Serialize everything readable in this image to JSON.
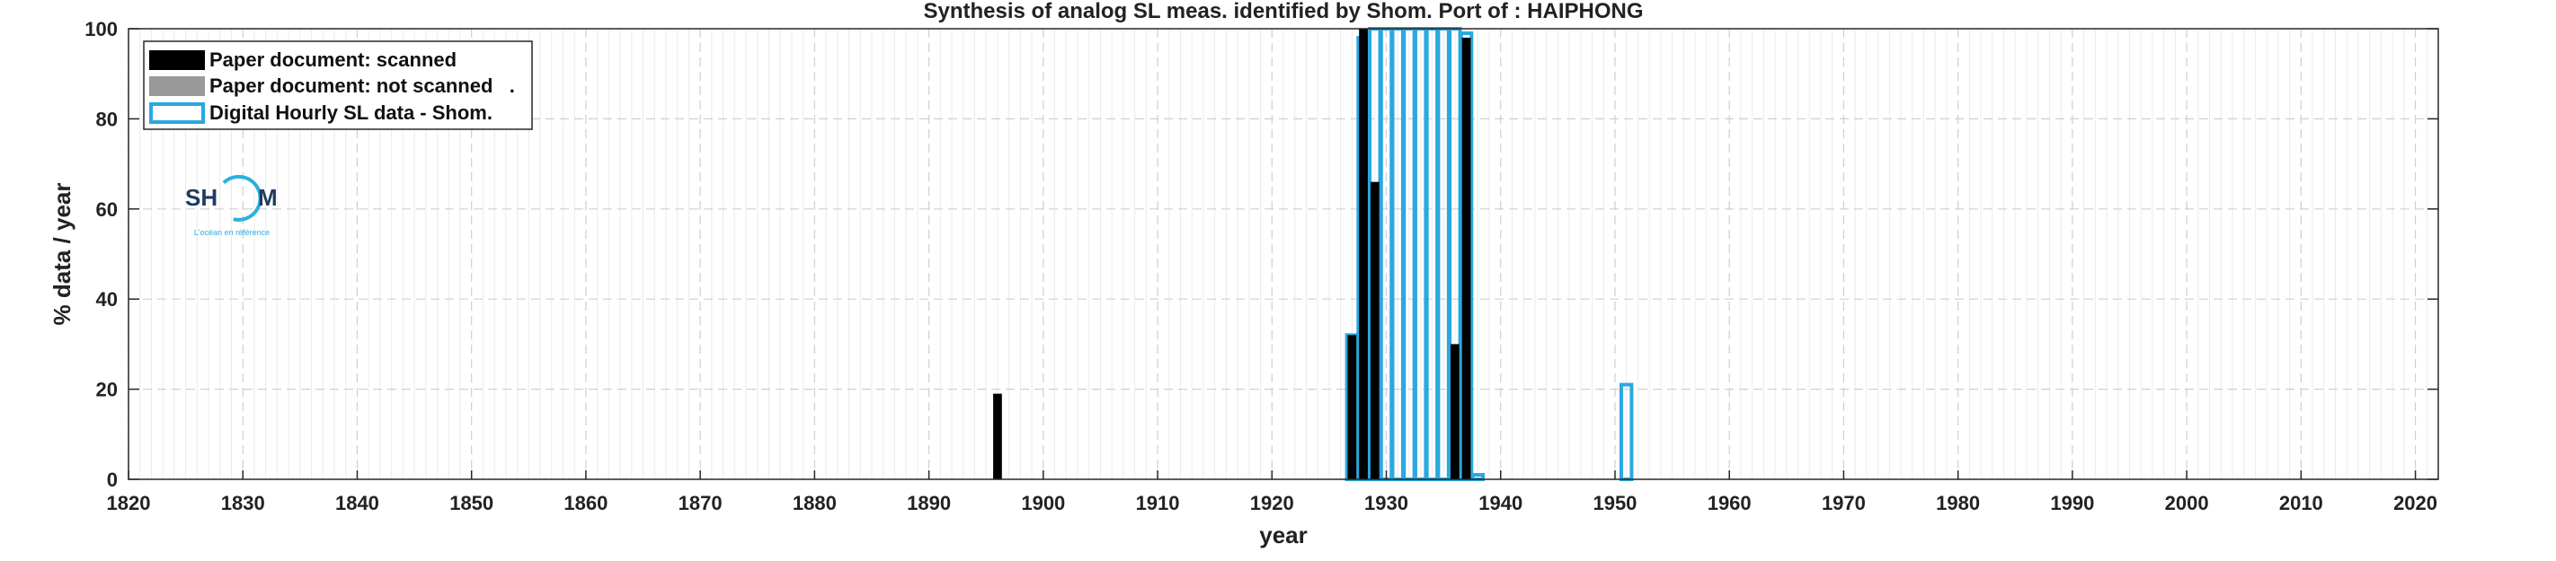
{
  "chart_data": {
    "type": "bar",
    "title": "Synthesis of analog SL meas. identified by Shom. Port of : HAIPHONG",
    "xlabel": "year",
    "ylabel": "% data / year",
    "xlim": [
      1820,
      2022
    ],
    "ylim": [
      0,
      100
    ],
    "xticks": [
      1820,
      1830,
      1840,
      1850,
      1860,
      1870,
      1880,
      1890,
      1900,
      1910,
      1920,
      1930,
      1940,
      1950,
      1960,
      1970,
      1980,
      1990,
      2000,
      2010,
      2020
    ],
    "yticks": [
      0,
      20,
      40,
      60,
      80,
      100
    ],
    "grid": true,
    "legend_position": "top-left",
    "series": [
      {
        "name": "Paper document: scanned",
        "style": "filled",
        "color": "#000000",
        "points": [
          {
            "x": 1896,
            "y": 19
          },
          {
            "x": 1927,
            "y": 32
          },
          {
            "x": 1928,
            "y": 100
          },
          {
            "x": 1929,
            "y": 66
          },
          {
            "x": 1936,
            "y": 30
          },
          {
            "x": 1937,
            "y": 98
          }
        ]
      },
      {
        "name": "Paper document: not scanned   .",
        "style": "filled",
        "color": "#999999",
        "points": []
      },
      {
        "name": "Digital Hourly SL data - Shom.",
        "style": "outline",
        "color": "#2aa8e0",
        "points": [
          {
            "x": 1927,
            "y": 32
          },
          {
            "x": 1928,
            "y": 98
          },
          {
            "x": 1929,
            "y": 100
          },
          {
            "x": 1930,
            "y": 100
          },
          {
            "x": 1931,
            "y": 100
          },
          {
            "x": 1932,
            "y": 100
          },
          {
            "x": 1933,
            "y": 100
          },
          {
            "x": 1934,
            "y": 100
          },
          {
            "x": 1935,
            "y": 100
          },
          {
            "x": 1936,
            "y": 100
          },
          {
            "x": 1937,
            "y": 99
          },
          {
            "x": 1938,
            "y": 1
          },
          {
            "x": 1951,
            "y": 21
          }
        ]
      }
    ]
  },
  "logo": {
    "text_left": "SH",
    "text_right": "M",
    "tagline": "L'océan en référence"
  }
}
